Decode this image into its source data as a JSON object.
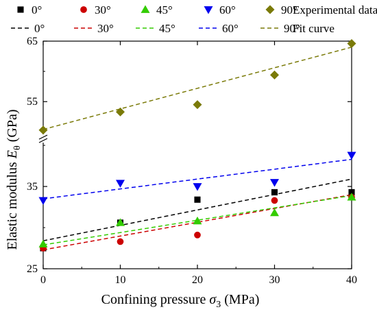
{
  "chart_data": {
    "type": "scatter",
    "title": "",
    "xlabel": "Confining pressure σ3 (MPa)",
    "ylabel": "Elastic modulus Eθ (GPa)",
    "xlabel_parts": {
      "main": "Confining pressure ",
      "symbol": "σ",
      "sub": "3",
      "unit": " (MPa)"
    },
    "ylabel_parts": {
      "main": "Elastic modulus ",
      "symbol": "E",
      "sub": "θ",
      "unit": "  (GPa)"
    },
    "x_ticks": [
      "0",
      "10",
      "20",
      "30",
      "40"
    ],
    "y_ticks_lower": [
      "25",
      "35"
    ],
    "y_ticks_upper": [
      "55",
      "65"
    ],
    "xlim": [
      0,
      40
    ],
    "ylim_lower": [
      25,
      40
    ],
    "ylim_upper": [
      48,
      65
    ],
    "axis_break": true,
    "grid": false,
    "legend": {
      "placement": "top",
      "experimental_label": "Experimental data",
      "fit_label": "Fit curve"
    },
    "x": [
      0,
      10,
      20,
      30,
      40
    ],
    "series": [
      {
        "name": "0°",
        "marker": "square",
        "color": "#000000",
        "values": [
          27.5,
          30.6,
          33.4,
          34.3,
          34.3
        ],
        "fit": [
          28.4,
          35.9
        ]
      },
      {
        "name": "30°",
        "marker": "circle",
        "color": "#cc0000",
        "values": [
          27.5,
          28.3,
          29.1,
          33.3,
          33.7
        ],
        "fit": [
          27.3,
          34.0
        ]
      },
      {
        "name": "45°",
        "marker": "triangle-up",
        "color": "#33cc00",
        "values": [
          28.0,
          30.6,
          30.8,
          31.8,
          33.7
        ],
        "fit": [
          27.9,
          33.9
        ]
      },
      {
        "name": "60°",
        "marker": "triangle-down",
        "color": "#0000ee",
        "values": [
          33.3,
          35.4,
          35.0,
          35.5,
          38.8
        ],
        "fit": [
          33.5,
          38.3
        ]
      },
      {
        "name": "90°",
        "marker": "diamond",
        "color": "#7a7a08",
        "values": [
          50.3,
          53.3,
          54.5,
          59.4,
          64.6
        ],
        "fit": [
          50.4,
          64.0
        ]
      }
    ]
  }
}
